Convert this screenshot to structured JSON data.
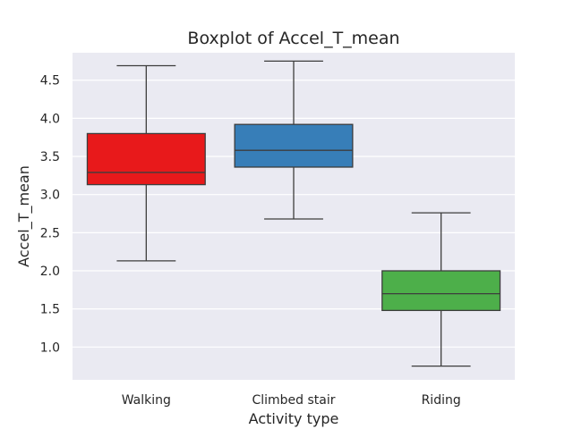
{
  "chart_data": {
    "type": "boxplot",
    "title": "Boxplot of Accel_T_mean",
    "xlabel": "Activity type",
    "ylabel": "Accel_T_mean",
    "ylim": [
      0.57,
      4.86
    ],
    "yticks": [
      1.0,
      1.5,
      2.0,
      2.5,
      3.0,
      3.5,
      4.0,
      4.5
    ],
    "grid": true,
    "categories": [
      "Walking",
      "Climbed stair",
      "Riding"
    ],
    "series": [
      {
        "category": "Walking",
        "whisker_low": 2.13,
        "q1": 3.13,
        "median": 3.29,
        "q3": 3.8,
        "whisker_high": 4.69,
        "color": "#e8191b"
      },
      {
        "category": "Climbed stair",
        "whisker_low": 2.68,
        "q1": 3.36,
        "median": 3.58,
        "q3": 3.92,
        "whisker_high": 4.75,
        "color": "#377eb8"
      },
      {
        "category": "Riding",
        "whisker_low": 0.75,
        "q1": 1.48,
        "median": 1.7,
        "q3": 2.0,
        "whisker_high": 2.76,
        "color": "#4daf4a"
      }
    ],
    "plot_background": "#eaeaf2"
  }
}
